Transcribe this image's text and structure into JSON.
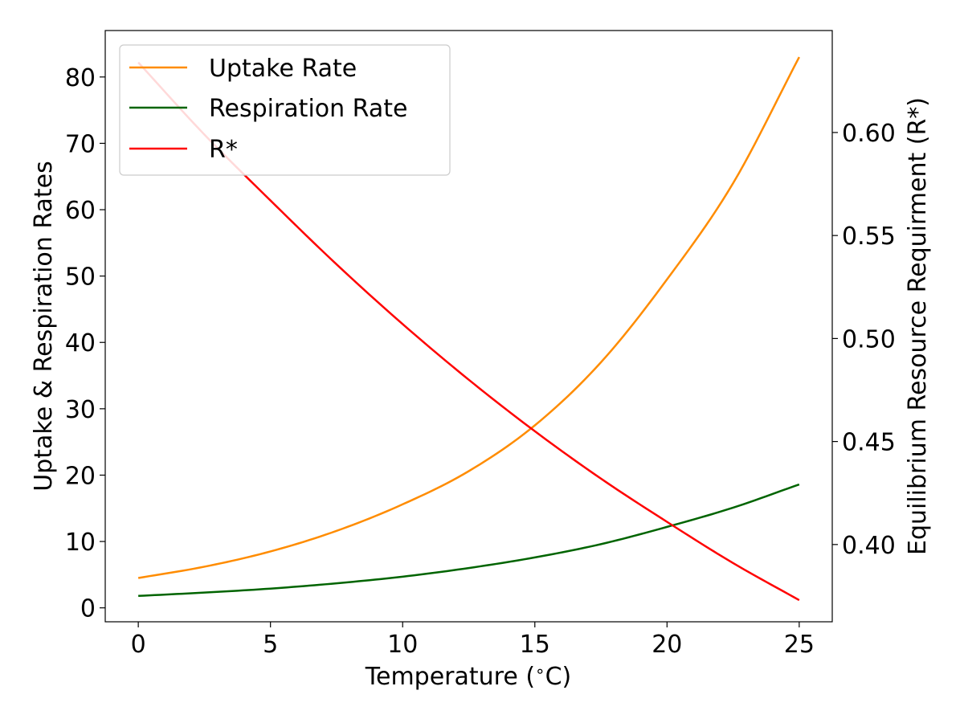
{
  "chart_data": {
    "type": "line",
    "xlabel": "Temperature (",
    "xlabel_unit": "C)",
    "ylabel_left": "Uptake & Respiration Rates",
    "ylabel_right": "Equilibrium Resource Requirment (R*)",
    "xlim": [
      -1.25,
      26.25
    ],
    "ylim_left": [
      -2.1,
      87.0
    ],
    "ylim_right": [
      0.3625,
      0.6495
    ],
    "xticks": [
      0,
      5,
      10,
      15,
      20,
      25
    ],
    "yticks_left": [
      0,
      10,
      20,
      30,
      40,
      50,
      60,
      70,
      80
    ],
    "yticks_right": [
      "0.40",
      "0.45",
      "0.50",
      "0.55",
      "0.60"
    ],
    "legend_position": "upper-left",
    "grid": false,
    "series": [
      {
        "name": "Uptake Rate",
        "color": "#ff8c00",
        "axis": "left",
        "x": [
          0,
          2.5,
          5,
          7.5,
          10,
          12.5,
          15,
          17.5,
          20,
          22.5,
          25
        ],
        "y": [
          4.5,
          6.2,
          8.5,
          11.6,
          15.6,
          20.6,
          27.5,
          37.0,
          49.5,
          64.0,
          83.0
        ]
      },
      {
        "name": "Respiration Rate",
        "color": "#006400",
        "axis": "left",
        "x": [
          0,
          2.5,
          5,
          7.5,
          10,
          12.5,
          15,
          17.5,
          20,
          22.5,
          25
        ],
        "y": [
          1.8,
          2.3,
          2.9,
          3.7,
          4.7,
          6.0,
          7.6,
          9.6,
          12.2,
          15.1,
          18.6
        ]
      },
      {
        "name": "R*",
        "color": "#ff0000",
        "axis": "right",
        "x": [
          0,
          2.5,
          5,
          7.5,
          10,
          12.5,
          15,
          17.5,
          20,
          22.5,
          25
        ],
        "y": [
          0.634,
          0.599,
          0.567,
          0.536,
          0.507,
          0.48,
          0.455,
          0.432,
          0.411,
          0.391,
          0.373
        ]
      }
    ]
  }
}
